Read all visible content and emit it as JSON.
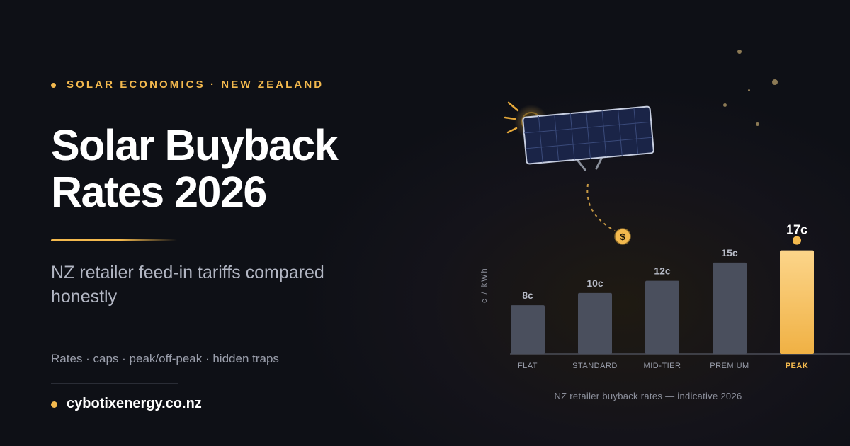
{
  "header": {
    "kicker": "SOLAR ECONOMICS · NEW ZEALAND",
    "title_line1": "Solar Buyback",
    "title_line2": "Rates 2026",
    "subtitle": "NZ retailer feed-in tariffs compared honestly",
    "tags": "Rates · caps · peak/off-peak · hidden traps",
    "site": "cybotixenergy.co.nz"
  },
  "colors": {
    "accent": "#f3b94e",
    "bar": "#4a4f5d",
    "bar_highlight": "#f6c265",
    "background": "#0e1016"
  },
  "icons": [
    "solar-panel-icon",
    "sun-icon",
    "dollar-coin-icon"
  ],
  "coin_symbol": "$",
  "chart_data": {
    "type": "bar",
    "categories": [
      "FLAT",
      "STANDARD",
      "MID-TIER",
      "PREMIUM",
      "PEAK"
    ],
    "values": [
      8,
      10,
      12,
      15,
      17
    ],
    "value_labels": [
      "8c",
      "10c",
      "12c",
      "15c",
      "17c"
    ],
    "highlight_category": "PEAK",
    "ylabel": "c / kWh",
    "ylim": [
      0,
      18
    ],
    "caption": "NZ retailer buyback rates — indicative 2026",
    "grid": false,
    "legend": "none"
  }
}
